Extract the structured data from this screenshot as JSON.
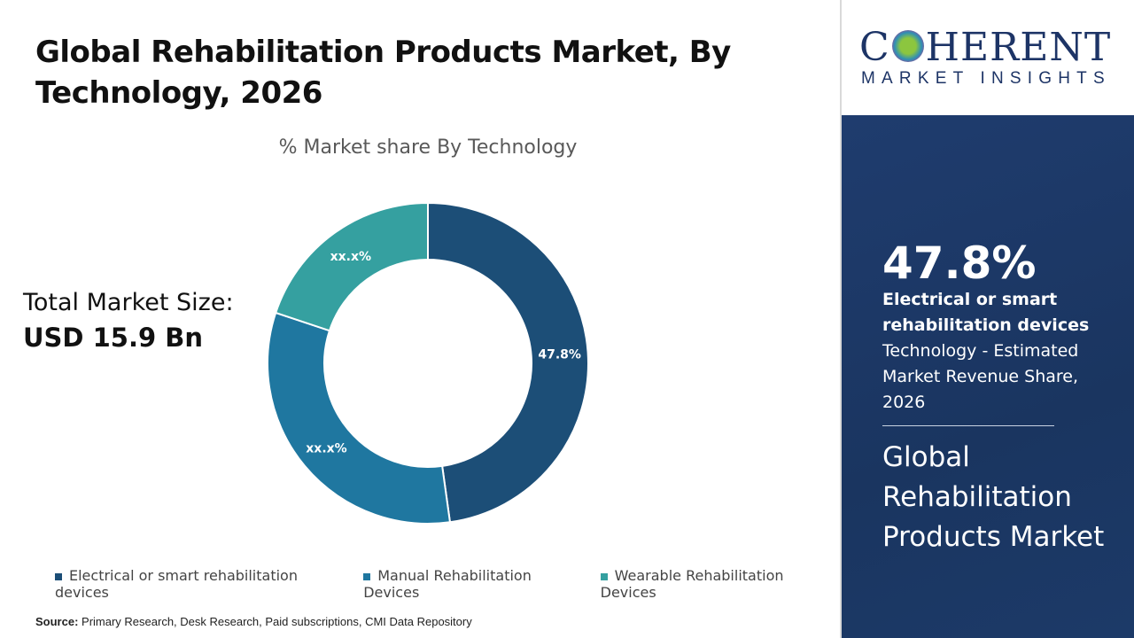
{
  "title": "Global Rehabilitation Products Market, By Technology, 2026",
  "total_market": {
    "label": "Total Market Size:",
    "value": "USD 15.9 Bn"
  },
  "source": {
    "label": "Source:",
    "text": " Primary Research, Desk Research, Paid subscriptions, CMI Data Repository"
  },
  "logo": {
    "line1": "COHERENT",
    "line2": "MARKET INSIGHTS"
  },
  "highlight": {
    "percent": "47.8%",
    "segment": "Electrical or smart rehabilitation devices",
    "description": "Technology - Estimated Market Revenue Share, 2026",
    "market": "Global Rehabilitation Products Market"
  },
  "chart_data": {
    "type": "pie",
    "donut": true,
    "title": "% Market share By Technology",
    "categories": [
      "Electrical or smart rehabilitation devices",
      "Manual Rehabilitation Devices",
      "Wearable Rehabilitation Devices"
    ],
    "values": [
      47.8,
      32.3,
      19.9
    ],
    "data_labels": [
      "47.8%",
      "xx.x%",
      "xx.x%"
    ],
    "colors": [
      "#1c4e77",
      "#1f77a0",
      "#35a0a0"
    ],
    "legend": "bottom"
  }
}
